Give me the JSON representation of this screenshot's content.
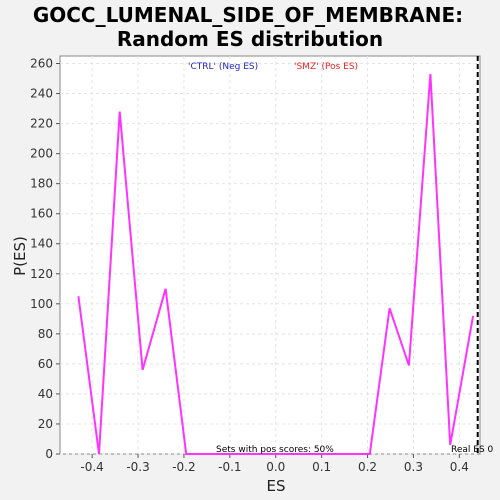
{
  "chart_data": {
    "type": "line",
    "title_line1": "GOCC_LUMENAL_SIDE_OF_MEMBRANE:",
    "title_line2": "Random ES distribution",
    "xlabel": "ES",
    "ylabel": "P(ES)",
    "xlim": [
      -0.47,
      0.445
    ],
    "ylim": [
      0,
      265
    ],
    "xticks": [
      -0.4,
      -0.3,
      -0.2,
      -0.1,
      0.0,
      0.1,
      0.2,
      0.3,
      0.4
    ],
    "xtick_labels": [
      "-0.4",
      "-0.3",
      "-0.2",
      "-0.1",
      "0.0",
      "0.1",
      "0.2",
      "0.3",
      "0.4"
    ],
    "yticks": [
      0,
      20,
      40,
      60,
      80,
      100,
      120,
      140,
      160,
      180,
      200,
      220,
      240,
      260
    ],
    "ytick_labels": [
      "0",
      "20",
      "40",
      "60",
      "80",
      "100",
      "120",
      "140",
      "160",
      "180",
      "200",
      "220",
      "240",
      "260"
    ],
    "grid": true,
    "series": [
      {
        "color": "#ff33ff",
        "x": [
          -0.43,
          -0.385,
          -0.34,
          -0.29,
          -0.24,
          -0.195,
          -0.15,
          -0.1,
          -0.05,
          0.0,
          0.05,
          0.1,
          0.155,
          0.205,
          0.248,
          0.29,
          0.337,
          0.38,
          0.43
        ],
        "y": [
          105,
          0,
          228,
          56,
          110,
          0,
          0,
          0,
          0,
          0,
          0,
          0,
          0,
          0,
          97,
          59,
          253,
          6,
          92
        ]
      }
    ],
    "legend": [
      {
        "label": "'CTRL' (Neg ES)",
        "color": "#2222cc"
      },
      {
        "label": "'SMZ' (Pos ES)",
        "color": "#ee2222"
      }
    ],
    "legend_placement": "top-center",
    "real_es": 0.44,
    "real_es_label": "Real ES 0",
    "annotation": "Sets with pos scores: 50%"
  }
}
